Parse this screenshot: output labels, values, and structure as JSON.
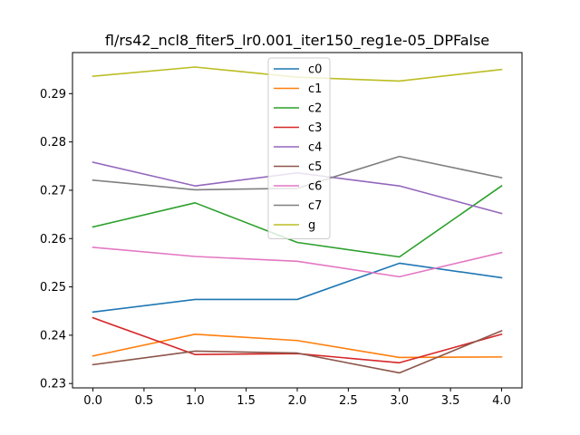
{
  "chart_data": {
    "type": "line",
    "title": "fl/rs42_ncl8_fiter5_lr0.001_iter150_reg1e-05_DPFalse",
    "xlabel": "",
    "ylabel": "",
    "x": [
      0,
      1,
      2,
      3,
      4
    ],
    "xlim": [
      -0.2,
      4.2
    ],
    "ylim": [
      0.2291,
      0.2985
    ],
    "xticks": [
      0.0,
      0.5,
      1.0,
      1.5,
      2.0,
      2.5,
      3.0,
      3.5,
      4.0
    ],
    "xtick_labels": [
      "0.0",
      "0.5",
      "1.0",
      "1.5",
      "2.0",
      "2.5",
      "3.0",
      "3.5",
      "4.0"
    ],
    "yticks": [
      0.23,
      0.24,
      0.25,
      0.26,
      0.27,
      0.28,
      0.29
    ],
    "ytick_labels": [
      "0.23",
      "0.24",
      "0.25",
      "0.26",
      "0.27",
      "0.28",
      "0.29"
    ],
    "grid": false,
    "legend_position": "top-center",
    "series": [
      {
        "name": "c0",
        "color": "#1f77b4",
        "values": [
          0.2448,
          0.2474,
          0.2474,
          0.2549,
          0.2519
        ]
      },
      {
        "name": "c1",
        "color": "#ff7f0e",
        "values": [
          0.2357,
          0.2402,
          0.2389,
          0.2354,
          0.2355
        ]
      },
      {
        "name": "c2",
        "color": "#2ca02c",
        "values": [
          0.2624,
          0.2674,
          0.2592,
          0.2562,
          0.2709
        ]
      },
      {
        "name": "c3",
        "color": "#d62728",
        "values": [
          0.2436,
          0.236,
          0.2362,
          0.2343,
          0.2402
        ]
      },
      {
        "name": "c4",
        "color": "#9467bd",
        "values": [
          0.2758,
          0.2709,
          0.2736,
          0.2709,
          0.2652
        ]
      },
      {
        "name": "c5",
        "color": "#8c564b",
        "values": [
          0.2339,
          0.2367,
          0.2363,
          0.2322,
          0.2409
        ]
      },
      {
        "name": "c6",
        "color": "#e377c2",
        "values": [
          0.2582,
          0.2563,
          0.2553,
          0.2521,
          0.2571
        ]
      },
      {
        "name": "c7",
        "color": "#7f7f7f",
        "values": [
          0.2721,
          0.2701,
          0.2704,
          0.277,
          0.2726
        ]
      },
      {
        "name": "g",
        "color": "#bcbd22",
        "values": [
          0.2936,
          0.2955,
          0.2934,
          0.2926,
          0.295
        ]
      }
    ]
  }
}
